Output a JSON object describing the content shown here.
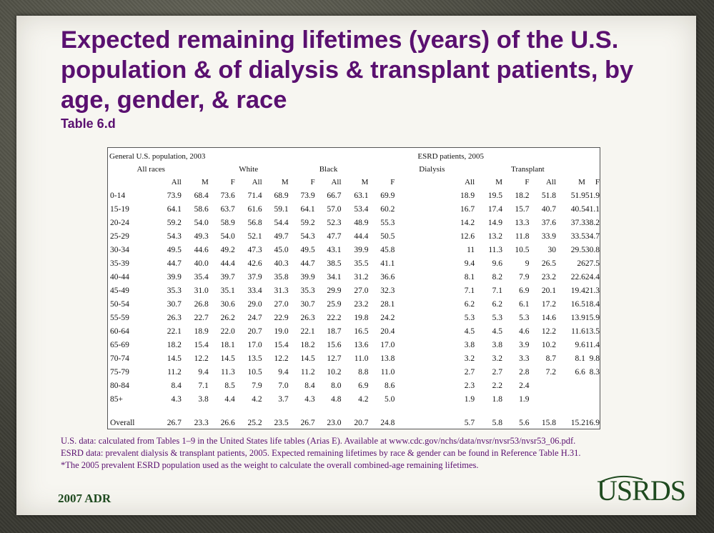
{
  "slide": {
    "title": "Expected remaining lifetimes (years) of the U.S. population & of dialysis & transplant patients, by age, gender, & race",
    "subtitle": "Table 6.d",
    "footer_left": "2007 ADR",
    "logo": "USRDS"
  },
  "table": {
    "general_header": "General U.S. population, 2003",
    "esrd_header": "ESRD patients, 2005",
    "groups": {
      "all_races": "All races",
      "white": "White",
      "black": "Black",
      "dialysis": "Dialysis",
      "transplant": "Transplant"
    },
    "subheaders": [
      "All",
      "M",
      "F",
      "All",
      "M",
      "F",
      "All",
      "M",
      "F",
      "All",
      "M",
      "F",
      "All",
      "M",
      "F"
    ],
    "rows": [
      {
        "label": "0-14",
        "values": [
          "73.9",
          "68.4",
          "73.6",
          "71.4",
          "68.9",
          "73.9",
          "66.7",
          "63.1",
          "69.9",
          "18.9",
          "19.5",
          "18.2",
          "51.8",
          "51.9",
          "51.9"
        ]
      },
      {
        "label": "15-19",
        "values": [
          "64.1",
          "58.6",
          "63.7",
          "61.6",
          "59.1",
          "64.1",
          "57.0",
          "53.4",
          "60.2",
          "16.7",
          "17.4",
          "15.7",
          "40.7",
          "40.5",
          "41.1"
        ]
      },
      {
        "label": "20-24",
        "values": [
          "59.2",
          "54.0",
          "58.9",
          "56.8",
          "54.4",
          "59.2",
          "52.3",
          "48.9",
          "55.3",
          "14.2",
          "14.9",
          "13.3",
          "37.6",
          "37.3",
          "38.2"
        ]
      },
      {
        "label": "25-29",
        "values": [
          "54.3",
          "49.3",
          "54.0",
          "52.1",
          "49.7",
          "54.3",
          "47.7",
          "44.4",
          "50.5",
          "12.6",
          "13.2",
          "11.8",
          "33.9",
          "33.5",
          "34.7"
        ]
      },
      {
        "label": "30-34",
        "values": [
          "49.5",
          "44.6",
          "49.2",
          "47.3",
          "45.0",
          "49.5",
          "43.1",
          "39.9",
          "45.8",
          "11",
          "11.3",
          "10.5",
          "30",
          "29.5",
          "30.8"
        ]
      },
      {
        "label": "35-39",
        "values": [
          "44.7",
          "40.0",
          "44.4",
          "42.6",
          "40.3",
          "44.7",
          "38.5",
          "35.5",
          "41.1",
          "9.4",
          "9.6",
          "9",
          "26.5",
          "26",
          "27.5"
        ]
      },
      {
        "label": "40-44",
        "values": [
          "39.9",
          "35.4",
          "39.7",
          "37.9",
          "35.8",
          "39.9",
          "34.1",
          "31.2",
          "36.6",
          "8.1",
          "8.2",
          "7.9",
          "23.2",
          "22.6",
          "24.4"
        ]
      },
      {
        "label": "45-49",
        "values": [
          "35.3",
          "31.0",
          "35.1",
          "33.4",
          "31.3",
          "35.3",
          "29.9",
          "27.0",
          "32.3",
          "7.1",
          "7.1",
          "6.9",
          "20.1",
          "19.4",
          "21.3"
        ]
      },
      {
        "label": "50-54",
        "values": [
          "30.7",
          "26.8",
          "30.6",
          "29.0",
          "27.0",
          "30.7",
          "25.9",
          "23.2",
          "28.1",
          "6.2",
          "6.2",
          "6.1",
          "17.2",
          "16.5",
          "18.4"
        ]
      },
      {
        "label": "55-59",
        "values": [
          "26.3",
          "22.7",
          "26.2",
          "24.7",
          "22.9",
          "26.3",
          "22.2",
          "19.8",
          "24.2",
          "5.3",
          "5.3",
          "5.3",
          "14.6",
          "13.9",
          "15.9"
        ]
      },
      {
        "label": "60-64",
        "values": [
          "22.1",
          "18.9",
          "22.0",
          "20.7",
          "19.0",
          "22.1",
          "18.7",
          "16.5",
          "20.4",
          "4.5",
          "4.5",
          "4.6",
          "12.2",
          "11.6",
          "13.5"
        ]
      },
      {
        "label": "65-69",
        "values": [
          "18.2",
          "15.4",
          "18.1",
          "17.0",
          "15.4",
          "18.2",
          "15.6",
          "13.6",
          "17.0",
          "3.8",
          "3.8",
          "3.9",
          "10.2",
          "9.6",
          "11.4"
        ]
      },
      {
        "label": "70-74",
        "values": [
          "14.5",
          "12.2",
          "14.5",
          "13.5",
          "12.2",
          "14.5",
          "12.7",
          "11.0",
          "13.8",
          "3.2",
          "3.2",
          "3.3",
          "8.7",
          "8.1",
          "9.8"
        ]
      },
      {
        "label": "75-79",
        "values": [
          "11.2",
          "9.4",
          "11.3",
          "10.5",
          "9.4",
          "11.2",
          "10.2",
          "8.8",
          "11.0",
          "2.7",
          "2.7",
          "2.8",
          "7.2",
          "6.6",
          "8.3"
        ]
      },
      {
        "label": "80-84",
        "values": [
          "8.4",
          "7.1",
          "8.5",
          "7.9",
          "7.0",
          "8.4",
          "8.0",
          "6.9",
          "8.6",
          "2.3",
          "2.2",
          "2.4",
          "",
          "",
          ""
        ]
      },
      {
        "label": "85+",
        "values": [
          "4.3",
          "3.8",
          "4.4",
          "4.2",
          "3.7",
          "4.3",
          "4.8",
          "4.2",
          "5.0",
          "1.9",
          "1.8",
          "1.9",
          "",
          "",
          ""
        ]
      }
    ],
    "overall": {
      "label": "Overall",
      "values": [
        "26.7",
        "23.3",
        "26.6",
        "25.2",
        "23.5",
        "26.7",
        "23.0",
        "20.7",
        "24.8",
        "5.7",
        "5.8",
        "5.6",
        "15.8",
        "15.2",
        "16.9"
      ]
    }
  },
  "notes": [
    "U.S. data: calculated from Tables 1–9 in the United States life tables (Arias E). Available at www.cdc.gov/nchs/data/nvsr/nvsr53/nvsr53_06.pdf.",
    "ESRD data: prevalent dialysis & transplant patients, 2005. Expected remaining lifetimes by race & gender can be found in Reference Table H.31.",
    "*The 2005 prevalent ESRD population used as the weight to calculate the overall combined-age remaining lifetimes."
  ]
}
